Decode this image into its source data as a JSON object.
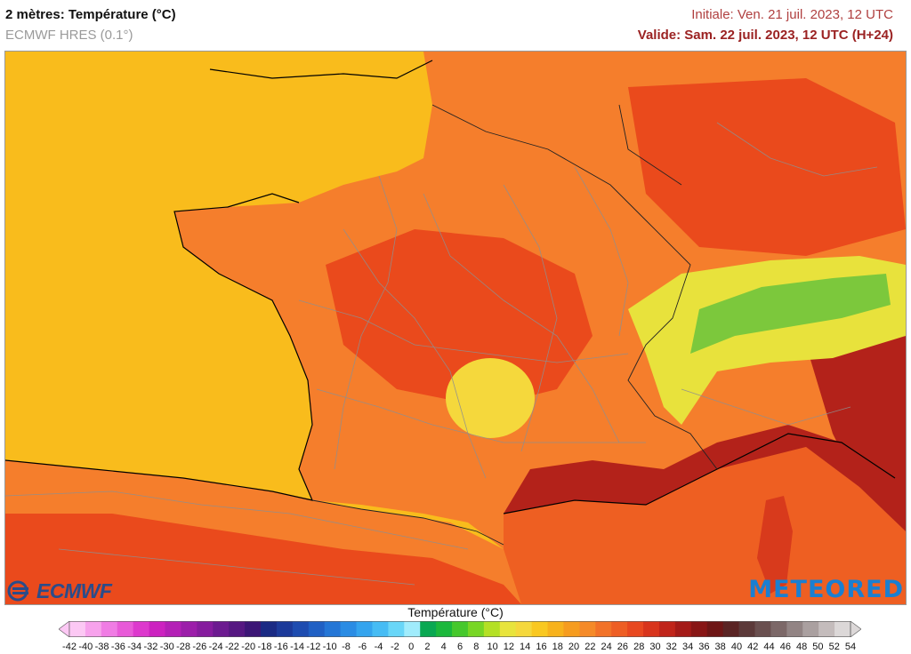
{
  "header": {
    "title": "2 mètres: Température (°C)",
    "model": "ECMWF HRES (0.1°)",
    "initial": "Initiale: Ven. 21 juil. 2023, 12 UTC",
    "valid": "Valide: Sam. 22 juil. 2023, 12 UTC (H+24)"
  },
  "map": {
    "region": "France",
    "colors": {
      "sea_atlantic": "#f9bc1c",
      "land_main": "#f57e2c",
      "land_hot": "#ea4a1c",
      "mediterranean": "#ee5f22",
      "very_hot": "#b3221a",
      "mountains_cool": "#f5d83c",
      "alps_cold": "#7cc83c",
      "alps_mid": "#e8e23c",
      "corsica": "#d83a1c"
    }
  },
  "legend": {
    "title": "Température (°C)",
    "labels": [
      "-42",
      "-40",
      "-38",
      "-36",
      "-34",
      "-32",
      "-30",
      "-28",
      "-26",
      "-24",
      "-22",
      "-20",
      "-18",
      "-16",
      "-14",
      "-12",
      "-10",
      "-8",
      "-6",
      "-4",
      "-2",
      "0",
      "2",
      "4",
      "6",
      "8",
      "10",
      "12",
      "14",
      "16",
      "18",
      "20",
      "22",
      "24",
      "26",
      "28",
      "30",
      "32",
      "34",
      "36",
      "38",
      "40",
      "42",
      "44",
      "46",
      "48",
      "50",
      "52",
      "54"
    ],
    "colors": [
      "#fcc8f4",
      "#f7a2ec",
      "#f07ce4",
      "#e85ad8",
      "#dd38cd",
      "#cc22c0",
      "#b420b6",
      "#9c1eaa",
      "#861c9e",
      "#6c1a90",
      "#561882",
      "#3c1676",
      "#1a2a84",
      "#1c3a9a",
      "#1e4cb0",
      "#2060c4",
      "#2476d6",
      "#2a8ce4",
      "#34a4ee",
      "#46bcf4",
      "#68d6f8",
      "#a0ecfc",
      "#0aa852",
      "#1cb83c",
      "#46c82c",
      "#78d624",
      "#b4e024",
      "#e8e43c",
      "#f5d83c",
      "#f9c820",
      "#f7b21c",
      "#f69c1e",
      "#f58a28",
      "#f27228",
      "#ee5e24",
      "#e84820",
      "#d8341c",
      "#c0241a",
      "#a41a18",
      "#881616",
      "#6e1616",
      "#5a2424",
      "#5c3a3a",
      "#6a5050",
      "#7c6868",
      "#928484",
      "#aaa0a0",
      "#c4bcbc",
      "#dcd8d8"
    ]
  },
  "logos": {
    "ecmwf": "ECMWF",
    "meteored": "METEORED"
  }
}
